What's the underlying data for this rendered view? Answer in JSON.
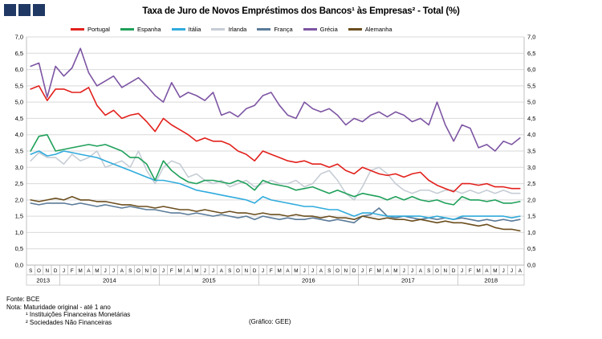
{
  "title": "Taxa de Juro de Novos Empréstimos dos Bancos¹ às Empresas² - Total (%)",
  "logo_color": "#1f3864",
  "footer": {
    "source": "Fonte: BCE",
    "note": "Nota: Maturidade original  - até 1 ano",
    "footnote1": "¹ Instituições Financeiras Monetárias",
    "footnote2": "² Sociedades Não Financeiras",
    "credit": "(Gráfico: GEE)"
  },
  "chart_data": {
    "type": "line",
    "title": "Taxa de Juro de Novos Empréstimos dos Bancos¹ às Empresas² - Total (%)",
    "ylim": [
      0,
      7
    ],
    "ytick_step": 0.5,
    "grid": true,
    "legend_position": "top",
    "y_ticks_both_sides": true,
    "decimal_separator": ",",
    "x_labels": [
      "S",
      "O",
      "N",
      "D",
      "J",
      "F",
      "M",
      "A",
      "M",
      "J",
      "J",
      "A",
      "S",
      "O",
      "N",
      "D",
      "J",
      "F",
      "M",
      "A",
      "M",
      "J",
      "J",
      "A",
      "S",
      "O",
      "N",
      "D",
      "J",
      "F",
      "M",
      "A",
      "M",
      "J",
      "J",
      "A",
      "S",
      "O",
      "N",
      "D",
      "J",
      "F",
      "M",
      "A",
      "M",
      "J",
      "J",
      "A",
      "S",
      "O",
      "N",
      "D",
      "J",
      "F",
      "M",
      "A",
      "M",
      "J",
      "J",
      "A"
    ],
    "year_groups": [
      {
        "label": "2013",
        "count": 4
      },
      {
        "label": "2014",
        "count": 12
      },
      {
        "label": "2015",
        "count": 12
      },
      {
        "label": "2016",
        "count": 12
      },
      {
        "label": "2017",
        "count": 12
      },
      {
        "label": "2018",
        "count": 8
      }
    ],
    "series": [
      {
        "name": "Portugal",
        "color": "#e2211c",
        "values": [
          5.4,
          5.5,
          5.05,
          5.4,
          5.4,
          5.3,
          5.3,
          5.45,
          4.9,
          4.6,
          4.75,
          4.5,
          4.6,
          4.65,
          4.4,
          4.1,
          4.5,
          4.3,
          4.15,
          4.0,
          3.8,
          3.9,
          3.8,
          3.8,
          3.7,
          3.5,
          3.4,
          3.2,
          3.5,
          3.4,
          3.3,
          3.2,
          3.15,
          3.2,
          3.1,
          3.1,
          3.0,
          3.1,
          2.9,
          2.8,
          3.0,
          2.9,
          2.8,
          2.75,
          2.8,
          2.7,
          2.8,
          2.85,
          2.6,
          2.45,
          2.35,
          2.25,
          2.5,
          2.5,
          2.45,
          2.5,
          2.4,
          2.4,
          2.35,
          2.35
        ]
      },
      {
        "name": "Espanha",
        "color": "#1fa05a",
        "values": [
          3.5,
          3.95,
          4.0,
          3.5,
          3.55,
          3.6,
          3.65,
          3.7,
          3.65,
          3.7,
          3.6,
          3.5,
          3.3,
          3.3,
          3.1,
          2.6,
          3.2,
          2.9,
          2.7,
          2.55,
          2.5,
          2.6,
          2.6,
          2.55,
          2.5,
          2.6,
          2.5,
          2.3,
          2.6,
          2.5,
          2.45,
          2.4,
          2.3,
          2.35,
          2.4,
          2.3,
          2.2,
          2.3,
          2.2,
          2.1,
          2.2,
          2.15,
          2.1,
          2.0,
          2.1,
          2.0,
          2.1,
          2.0,
          1.95,
          2.0,
          1.9,
          1.85,
          2.1,
          2.0,
          2.0,
          1.95,
          2.0,
          1.9,
          1.9,
          1.95
        ]
      },
      {
        "name": "Itália",
        "color": "#2fabdc",
        "values": [
          3.4,
          3.5,
          3.35,
          3.4,
          3.5,
          3.45,
          3.4,
          3.35,
          3.3,
          3.2,
          3.1,
          3.0,
          2.9,
          2.8,
          2.7,
          2.6,
          2.6,
          2.55,
          2.5,
          2.4,
          2.3,
          2.25,
          2.2,
          2.15,
          2.1,
          2.05,
          2.0,
          1.9,
          2.1,
          2.0,
          1.95,
          1.9,
          1.85,
          1.8,
          1.8,
          1.75,
          1.7,
          1.7,
          1.6,
          1.5,
          1.6,
          1.6,
          1.55,
          1.5,
          1.5,
          1.5,
          1.5,
          1.5,
          1.45,
          1.5,
          1.45,
          1.4,
          1.5,
          1.5,
          1.5,
          1.5,
          1.5,
          1.5,
          1.45,
          1.5
        ]
      },
      {
        "name": "Irlanda",
        "color": "#c6cdd5",
        "values": [
          3.2,
          3.45,
          3.3,
          3.3,
          3.1,
          3.4,
          3.2,
          3.3,
          3.5,
          3.0,
          3.1,
          3.2,
          3.0,
          3.5,
          2.9,
          2.5,
          3.0,
          3.2,
          3.1,
          2.7,
          2.8,
          2.6,
          2.5,
          2.6,
          2.4,
          2.5,
          2.6,
          2.4,
          2.5,
          2.6,
          2.5,
          2.5,
          2.6,
          2.4,
          2.5,
          2.8,
          2.9,
          2.6,
          2.2,
          2.0,
          2.4,
          2.9,
          3.0,
          2.8,
          2.5,
          2.3,
          2.2,
          2.3,
          2.3,
          2.2,
          2.3,
          2.3,
          2.2,
          2.3,
          2.2,
          2.3,
          2.2,
          2.3,
          2.2,
          2.2
        ]
      },
      {
        "name": "França",
        "color": "#5b7b99",
        "values": [
          1.9,
          1.85,
          1.9,
          1.9,
          1.9,
          1.85,
          1.9,
          1.85,
          1.8,
          1.85,
          1.8,
          1.75,
          1.8,
          1.75,
          1.7,
          1.7,
          1.65,
          1.6,
          1.6,
          1.55,
          1.6,
          1.55,
          1.5,
          1.55,
          1.5,
          1.45,
          1.5,
          1.4,
          1.5,
          1.45,
          1.4,
          1.45,
          1.4,
          1.4,
          1.45,
          1.4,
          1.35,
          1.4,
          1.35,
          1.3,
          1.5,
          1.55,
          1.75,
          1.5,
          1.45,
          1.5,
          1.45,
          1.4,
          1.45,
          1.4,
          1.45,
          1.4,
          1.45,
          1.4,
          1.35,
          1.4,
          1.35,
          1.4,
          1.35,
          1.4
        ]
      },
      {
        "name": "Grécia",
        "color": "#7d55a3",
        "values": [
          6.1,
          6.2,
          5.15,
          6.1,
          5.8,
          6.05,
          6.65,
          5.9,
          5.5,
          5.65,
          5.8,
          5.45,
          5.6,
          5.75,
          5.5,
          5.2,
          5.0,
          5.6,
          5.15,
          5.3,
          5.2,
          5.05,
          5.3,
          4.6,
          4.7,
          4.55,
          4.8,
          4.9,
          5.2,
          5.3,
          4.9,
          4.6,
          4.5,
          5.0,
          4.8,
          4.7,
          4.8,
          4.6,
          4.3,
          4.5,
          4.4,
          4.6,
          4.7,
          4.55,
          4.7,
          4.6,
          4.4,
          4.5,
          4.3,
          5.0,
          4.3,
          3.8,
          4.3,
          4.2,
          3.6,
          3.7,
          3.5,
          3.8,
          3.7,
          3.9
        ]
      },
      {
        "name": "Alemanha",
        "color": "#6b4e1e",
        "values": [
          2.0,
          1.95,
          2.0,
          2.05,
          2.0,
          2.1,
          2.0,
          2.0,
          1.95,
          1.95,
          1.9,
          1.85,
          1.85,
          1.8,
          1.8,
          1.75,
          1.8,
          1.75,
          1.7,
          1.7,
          1.65,
          1.7,
          1.65,
          1.6,
          1.65,
          1.6,
          1.6,
          1.55,
          1.6,
          1.55,
          1.55,
          1.5,
          1.55,
          1.5,
          1.5,
          1.45,
          1.5,
          1.45,
          1.45,
          1.4,
          1.5,
          1.45,
          1.4,
          1.45,
          1.4,
          1.4,
          1.35,
          1.4,
          1.35,
          1.3,
          1.35,
          1.3,
          1.3,
          1.25,
          1.2,
          1.25,
          1.15,
          1.1,
          1.1,
          1.05
        ]
      }
    ]
  }
}
